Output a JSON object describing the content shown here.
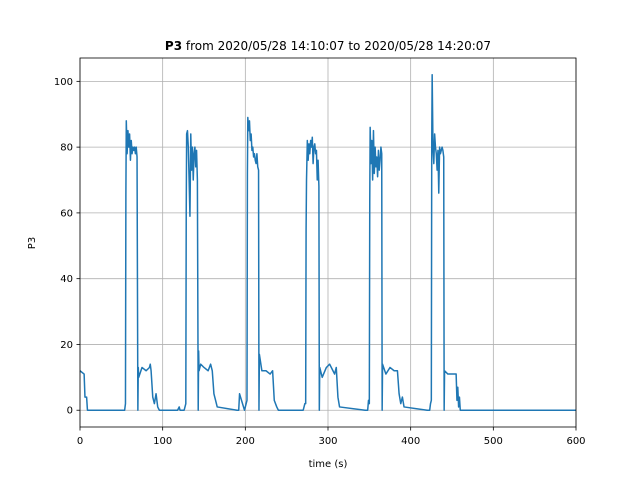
{
  "chart_data": {
    "type": "line",
    "title_bold": "P3",
    "title": "from 2020/05/28 14:10:07 to 2020/05/28 14:20:07",
    "xlabel": "time (s)",
    "ylabel": "P3",
    "x": [
      0,
      5,
      6,
      8,
      9,
      10,
      11,
      54,
      55,
      55.5,
      56,
      57,
      58,
      59,
      60,
      61,
      62,
      63,
      64,
      65,
      66,
      67,
      68,
      69,
      70,
      70.5,
      71,
      75,
      80,
      84,
      85,
      86,
      88,
      90,
      92,
      94,
      96,
      118,
      120,
      121,
      126,
      128,
      128.5,
      129,
      130,
      131,
      132,
      133,
      134,
      135,
      136,
      137,
      138,
      139,
      140,
      141,
      142,
      143,
      143.5,
      144,
      146,
      150,
      155,
      158,
      160,
      162,
      164,
      166,
      190,
      192,
      193,
      199,
      202,
      202.5,
      203,
      204,
      205,
      206,
      207,
      208,
      209,
      210,
      211,
      212,
      213,
      214,
      215,
      216,
      216.5,
      217,
      220,
      225,
      230,
      233,
      235,
      238,
      240,
      270,
      272,
      273,
      273.5,
      274,
      275,
      276,
      277,
      278,
      279,
      280,
      281,
      282,
      283,
      284,
      285,
      286,
      287,
      288,
      289,
      289.5,
      290,
      293,
      298,
      302,
      306,
      308,
      310,
      312,
      314,
      345,
      348,
      349,
      350,
      350.5,
      351,
      352,
      353,
      354,
      355,
      356,
      357,
      358,
      359,
      360,
      361,
      362,
      363,
      364,
      365,
      365.5,
      366,
      370,
      375,
      380,
      384,
      386,
      388,
      390,
      392,
      420,
      423,
      424,
      425,
      425.5,
      426,
      427,
      428,
      429,
      430,
      431,
      432,
      433,
      434,
      435,
      436,
      437,
      438,
      439,
      440,
      440.5,
      441,
      445,
      450,
      455,
      456,
      457,
      458,
      459,
      460,
      600
    ],
    "series": [
      {
        "name": "P3",
        "color": "#1f77b4",
        "values": [
          12,
          11,
          4,
          4,
          0,
          0,
          0,
          0,
          2,
          65,
          88,
          78,
          85,
          80,
          84,
          76,
          82,
          78,
          80,
          79,
          80,
          78,
          80,
          77,
          0,
          13,
          10,
          13,
          12,
          13,
          14,
          12,
          4,
          2,
          5,
          1,
          0,
          0,
          1,
          0,
          0,
          2,
          60,
          84,
          85,
          80,
          70,
          59,
          84,
          73,
          80,
          70,
          78,
          80,
          74,
          79,
          70,
          0,
          18,
          12,
          14,
          13,
          12,
          14,
          12,
          5,
          3,
          1,
          0,
          0,
          5,
          0,
          3,
          72,
          89,
          85,
          88,
          82,
          84,
          79,
          80,
          77,
          78,
          76,
          75,
          78,
          74,
          73,
          0,
          17,
          12,
          12,
          11,
          12,
          3,
          1,
          0,
          0,
          2,
          2,
          55,
          70,
          82,
          76,
          81,
          78,
          82,
          80,
          83,
          75,
          80,
          81,
          78,
          79,
          70,
          76,
          68,
          0,
          13,
          10,
          13,
          14,
          12,
          11,
          13,
          4,
          1,
          0,
          0,
          3,
          2,
          63,
          86,
          75,
          82,
          70,
          85,
          72,
          80,
          74,
          77,
          71,
          79,
          73,
          76,
          80,
          78,
          0,
          14,
          11,
          13,
          12,
          12,
          5,
          2,
          4,
          1,
          0,
          0,
          2,
          3,
          82,
          102,
          80,
          75,
          84,
          80,
          78,
          73,
          79,
          66,
          80,
          78,
          79,
          80,
          79,
          77,
          0,
          12,
          11,
          11,
          11,
          3,
          7,
          1,
          4,
          0,
          0
        ]
      }
    ],
    "xlim": [
      0,
      600
    ],
    "xticks": [
      0,
      100,
      200,
      300,
      400,
      500,
      600
    ],
    "ylim": [
      -5.1,
      107.1
    ],
    "yticks": [
      0,
      20,
      40,
      60,
      80,
      100
    ],
    "grid": true
  }
}
